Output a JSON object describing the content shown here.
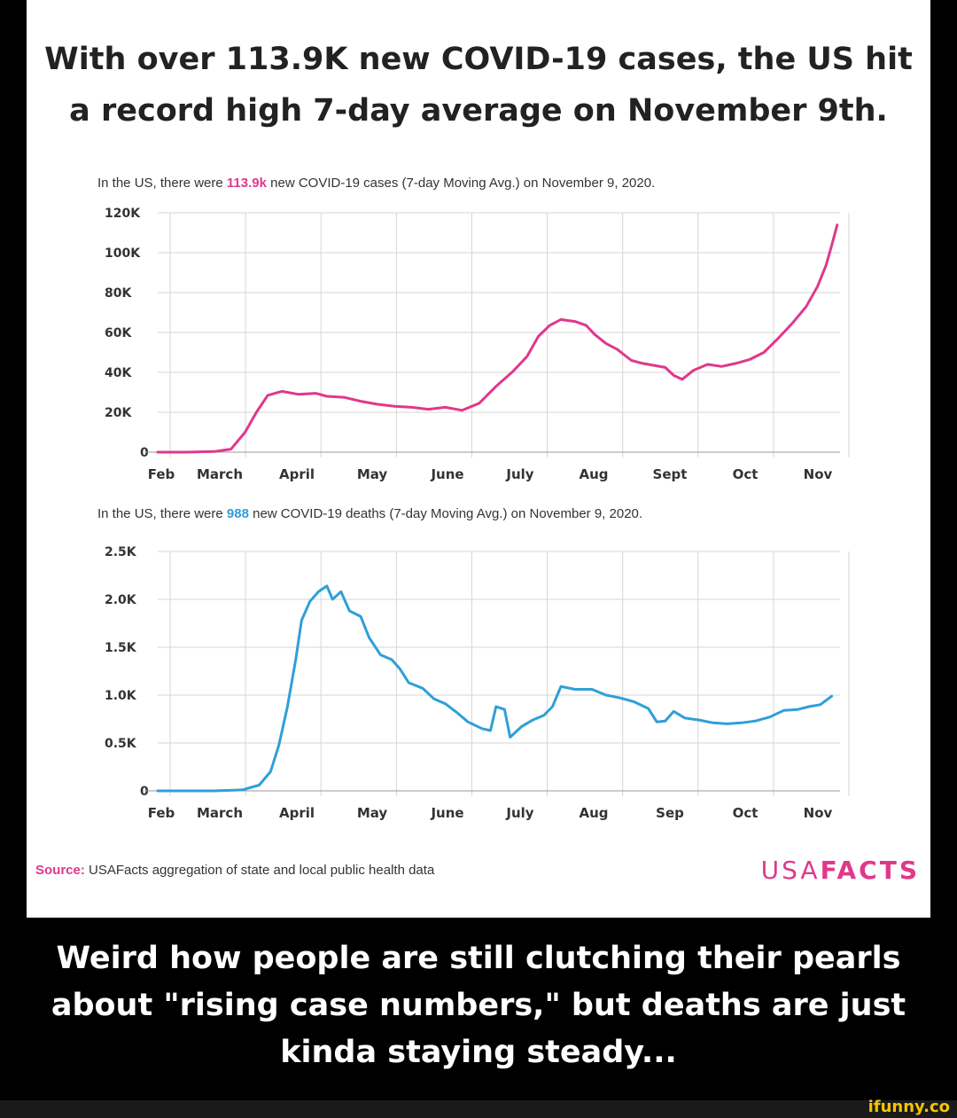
{
  "headline": {
    "line1": "With over 113.9K new COVID-19 cases, the US hit",
    "line2": "a record high 7-day average on November 9th."
  },
  "cases_subtitle": {
    "pre": "In the US, there were ",
    "value": "113.9k",
    "post": " new COVID-19 cases (7-day Moving Avg.) on November 9, 2020."
  },
  "deaths_subtitle": {
    "pre": "In the US, there were ",
    "value": "988",
    "post": " new COVID-19 deaths (7-day Moving Avg.) on November 9, 2020."
  },
  "source": {
    "label": "Source:",
    "text": "USAFacts aggregation of state and local public health data"
  },
  "logo": {
    "part1": "USA",
    "part2": "FACTS"
  },
  "caption": {
    "line1": "Weird how people are still clutching their pearls",
    "line2": "about \"rising case numbers,\" but deaths are just",
    "line3": "kinda staying steady..."
  },
  "watermark": "ifunny.co",
  "colors": {
    "cases": "#e0388b",
    "deaths": "#2f9fd8",
    "grid": "#d6d6d6"
  },
  "chart_data": [
    {
      "type": "line",
      "series": [
        {
          "name": "new COVID-19 cases (7-day Moving Avg.)",
          "color": "#e0388b"
        }
      ],
      "ylim": [
        0,
        120000
      ],
      "y_ticks": [
        {
          "value": 0,
          "label": "0"
        },
        {
          "value": 20000,
          "label": "20K"
        },
        {
          "value": 40000,
          "label": "40K"
        },
        {
          "value": 60000,
          "label": "60K"
        },
        {
          "value": 80000,
          "label": "80K"
        },
        {
          "value": 100000,
          "label": "100K"
        },
        {
          "value": 120000,
          "label": "120K"
        }
      ],
      "x_ticks": [
        "Feb",
        "March",
        "April",
        "May",
        "June",
        "July",
        "Aug",
        "Sept",
        "Oct",
        "Nov"
      ],
      "grid": true,
      "points": [
        [
          0,
          0
        ],
        [
          0.5,
          0
        ],
        [
          1.0,
          300
        ],
        [
          1.3,
          1500
        ],
        [
          1.55,
          10000
        ],
        [
          1.75,
          20000
        ],
        [
          1.95,
          28500
        ],
        [
          2.2,
          30500
        ],
        [
          2.5,
          29000
        ],
        [
          2.8,
          29500
        ],
        [
          3.0,
          28000
        ],
        [
          3.3,
          27500
        ],
        [
          3.6,
          25500
        ],
        [
          3.9,
          24000
        ],
        [
          4.2,
          23000
        ],
        [
          4.5,
          22500
        ],
        [
          4.8,
          21500
        ],
        [
          5.1,
          22500
        ],
        [
          5.4,
          21000
        ],
        [
          5.7,
          24500
        ],
        [
          6.0,
          33000
        ],
        [
          6.3,
          40500
        ],
        [
          6.55,
          48000
        ],
        [
          6.75,
          58000
        ],
        [
          6.95,
          63500
        ],
        [
          7.15,
          66500
        ],
        [
          7.4,
          65500
        ],
        [
          7.6,
          63500
        ],
        [
          7.75,
          59000
        ],
        [
          7.95,
          54500
        ],
        [
          8.15,
          51500
        ],
        [
          8.4,
          46000
        ],
        [
          8.6,
          44500
        ],
        [
          8.8,
          43500
        ],
        [
          9.0,
          42500
        ],
        [
          9.15,
          38500
        ],
        [
          9.3,
          36500
        ],
        [
          9.5,
          41000
        ],
        [
          9.75,
          44000
        ],
        [
          10.0,
          43000
        ],
        [
          10.25,
          44500
        ],
        [
          10.5,
          46500
        ],
        [
          10.75,
          50000
        ],
        [
          11.0,
          57000
        ],
        [
          11.25,
          64500
        ],
        [
          11.5,
          73000
        ],
        [
          11.7,
          83000
        ],
        [
          11.85,
          93500
        ],
        [
          11.95,
          103500
        ],
        [
          12.05,
          113900
        ]
      ]
    },
    {
      "type": "line",
      "series": [
        {
          "name": "new COVID-19 deaths (7-day Moving Avg.)",
          "color": "#2f9fd8"
        }
      ],
      "ylim": [
        0,
        2500
      ],
      "y_ticks": [
        {
          "value": 0,
          "label": "0"
        },
        {
          "value": 500,
          "label": "0.5K"
        },
        {
          "value": 1000,
          "label": "1.0K"
        },
        {
          "value": 1500,
          "label": "1.5K"
        },
        {
          "value": 2000,
          "label": "2.0K"
        },
        {
          "value": 2500,
          "label": "2.5K"
        }
      ],
      "x_ticks": [
        "Feb",
        "March",
        "April",
        "May",
        "June",
        "July",
        "Aug",
        "Sep",
        "Oct",
        "Nov"
      ],
      "grid": true,
      "points": [
        [
          0,
          0
        ],
        [
          0.5,
          0
        ],
        [
          1.0,
          0
        ],
        [
          1.5,
          10
        ],
        [
          1.8,
          60
        ],
        [
          2.0,
          200
        ],
        [
          2.15,
          480
        ],
        [
          2.3,
          880
        ],
        [
          2.45,
          1380
        ],
        [
          2.55,
          1780
        ],
        [
          2.7,
          1980
        ],
        [
          2.85,
          2080
        ],
        [
          3.0,
          2140
        ],
        [
          3.1,
          2000
        ],
        [
          3.25,
          2080
        ],
        [
          3.4,
          1880
        ],
        [
          3.6,
          1820
        ],
        [
          3.75,
          1600
        ],
        [
          3.95,
          1420
        ],
        [
          4.15,
          1370
        ],
        [
          4.3,
          1270
        ],
        [
          4.45,
          1130
        ],
        [
          4.7,
          1070
        ],
        [
          4.9,
          960
        ],
        [
          5.1,
          910
        ],
        [
          5.3,
          820
        ],
        [
          5.5,
          720
        ],
        [
          5.75,
          650
        ],
        [
          5.9,
          630
        ],
        [
          6.0,
          880
        ],
        [
          6.15,
          850
        ],
        [
          6.25,
          560
        ],
        [
          6.45,
          670
        ],
        [
          6.65,
          740
        ],
        [
          6.85,
          790
        ],
        [
          7.0,
          880
        ],
        [
          7.15,
          1090
        ],
        [
          7.4,
          1060
        ],
        [
          7.7,
          1060
        ],
        [
          7.95,
          1000
        ],
        [
          8.2,
          970
        ],
        [
          8.45,
          930
        ],
        [
          8.7,
          860
        ],
        [
          8.85,
          720
        ],
        [
          9.0,
          730
        ],
        [
          9.15,
          830
        ],
        [
          9.35,
          760
        ],
        [
          9.6,
          740
        ],
        [
          9.85,
          710
        ],
        [
          10.1,
          700
        ],
        [
          10.35,
          710
        ],
        [
          10.6,
          730
        ],
        [
          10.85,
          770
        ],
        [
          11.1,
          840
        ],
        [
          11.35,
          850
        ],
        [
          11.55,
          880
        ],
        [
          11.75,
          900
        ],
        [
          11.95,
          988
        ]
      ]
    }
  ]
}
